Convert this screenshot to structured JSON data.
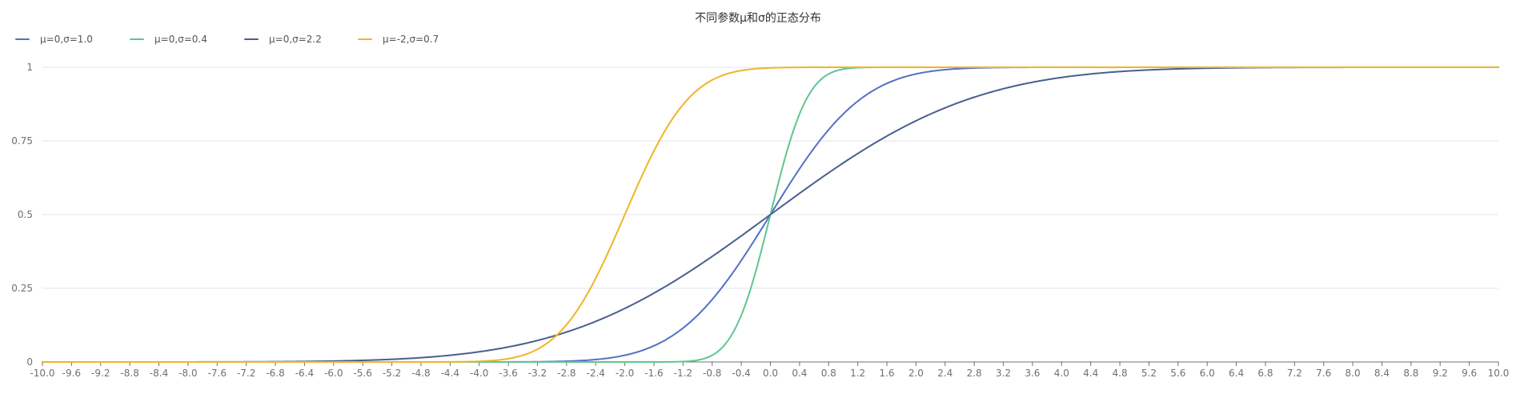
{
  "chart_data": {
    "type": "line",
    "title": "不同参数μ和σ的正态分布",
    "xlabel": "",
    "ylabel": "",
    "xlim": [
      -10.0,
      10.0
    ],
    "ylim": [
      0,
      1
    ],
    "grid": true,
    "legend_position": "top-left",
    "x_ticks": [
      "-10.0",
      "-9.6",
      "-9.2",
      "-8.8",
      "-8.4",
      "-8.0",
      "-7.6",
      "-7.2",
      "-6.8",
      "-6.4",
      "-6.0",
      "-5.6",
      "-5.2",
      "-4.8",
      "-4.4",
      "-4.0",
      "-3.6",
      "-3.2",
      "-2.8",
      "-2.4",
      "-2.0",
      "-1.6",
      "-1.2",
      "-0.8",
      "-0.4",
      "0.0",
      "0.4",
      "0.8",
      "1.2",
      "1.6",
      "2.0",
      "2.4",
      "2.8",
      "3.2",
      "3.6",
      "4.0",
      "4.4",
      "4.8",
      "5.2",
      "5.6",
      "6.0",
      "6.4",
      "6.8",
      "7.2",
      "7.6",
      "8.0",
      "8.4",
      "8.8",
      "9.2",
      "9.6",
      "10.0"
    ],
    "y_ticks": [
      "0",
      "0.25",
      "0.5",
      "0.75",
      "1"
    ],
    "x": [
      -10.0,
      -9.6,
      -9.2,
      -8.8,
      -8.4,
      -8.0,
      -7.6,
      -7.2,
      -6.8,
      -6.4,
      -6.0,
      -5.6,
      -5.2,
      -4.8,
      -4.4,
      -4.0,
      -3.6,
      -3.2,
      -2.8,
      -2.4,
      -2.0,
      -1.6,
      -1.2,
      -0.8,
      -0.4,
      0.0,
      0.4,
      0.8,
      1.2,
      1.6,
      2.0,
      2.4,
      2.8,
      3.2,
      3.6,
      4.0,
      4.4,
      4.8,
      5.2,
      5.6,
      6.0,
      6.4,
      6.8,
      7.2,
      7.6,
      8.0,
      8.4,
      8.8,
      9.2,
      9.6,
      10.0
    ],
    "series": [
      {
        "name": "μ=0,σ=1.0",
        "color": "#5470c6",
        "mu": 0,
        "sigma": 1.0,
        "values": [
          0,
          0,
          0,
          0,
          0,
          0,
          0,
          0,
          0,
          0,
          0,
          0,
          0,
          0,
          0,
          3e-05,
          0.00016,
          0.00069,
          0.00256,
          0.0082,
          0.02275,
          0.0548,
          0.11507,
          0.21186,
          0.34458,
          0.5,
          0.65542,
          0.78814,
          0.88493,
          0.9452,
          0.97725,
          0.9918,
          0.99744,
          0.99931,
          0.99984,
          0.99997,
          1,
          1,
          1,
          1,
          1,
          1,
          1,
          1,
          1,
          1,
          1,
          1,
          1,
          1,
          1
        ]
      },
      {
        "name": "μ=0,σ=0.4",
        "color": "#5ec68e",
        "mu": 0,
        "sigma": 0.4,
        "values": [
          0,
          0,
          0,
          0,
          0,
          0,
          0,
          0,
          0,
          0,
          0,
          0,
          0,
          0,
          0,
          0,
          0,
          0,
          0,
          0,
          0,
          3e-05,
          0.00135,
          0.02275,
          0.15866,
          0.5,
          0.84134,
          0.97725,
          0.99865,
          0.99997,
          1,
          1,
          1,
          1,
          1,
          1,
          1,
          1,
          1,
          1,
          1,
          1,
          1,
          1,
          1,
          1,
          1,
          1,
          1,
          1,
          1
        ]
      },
      {
        "name": "μ=0,σ=2.2",
        "color": "#4a5f8f",
        "mu": 0,
        "sigma": 2.2,
        "values": [
          0,
          0,
          0,
          0,
          7e-05,
          0.00014,
          0.00027,
          0.00051,
          0.001,
          0.0018,
          0.0032,
          0.0055,
          0.0091,
          0.0146,
          0.0228,
          0.0345,
          0.0509,
          0.0729,
          0.1016,
          0.1376,
          0.1816,
          0.2335,
          0.2926,
          0.358,
          0.4276,
          0.5,
          0.5724,
          0.642,
          0.7074,
          0.7665,
          0.8184,
          0.8624,
          0.8984,
          0.9271,
          0.9491,
          0.9655,
          0.9772,
          0.9854,
          0.9909,
          0.9945,
          0.9968,
          0.9982,
          0.999,
          0.99949,
          0.99973,
          0.99986,
          0.99993,
          1,
          1,
          1,
          1
        ]
      },
      {
        "name": "μ=-2,σ=0.7",
        "color": "#f0b427",
        "mu": -2,
        "sigma": 0.7,
        "values": [
          0,
          0,
          0,
          0,
          0,
          0,
          0,
          0,
          0,
          0,
          1e-05,
          4e-05,
          0.00024,
          0.00113,
          0.00432,
          0.0107,
          0.0111,
          0.0436,
          0.1265,
          0.2839,
          0.5,
          0.7161,
          0.8735,
          0.9564,
          0.9889,
          0.99786,
          0.99968,
          0.99996,
          1,
          1,
          1,
          1,
          1,
          1,
          1,
          1,
          1,
          1,
          1,
          1,
          1,
          1,
          1,
          1,
          1,
          1,
          1,
          1,
          1,
          1,
          1
        ]
      }
    ]
  }
}
